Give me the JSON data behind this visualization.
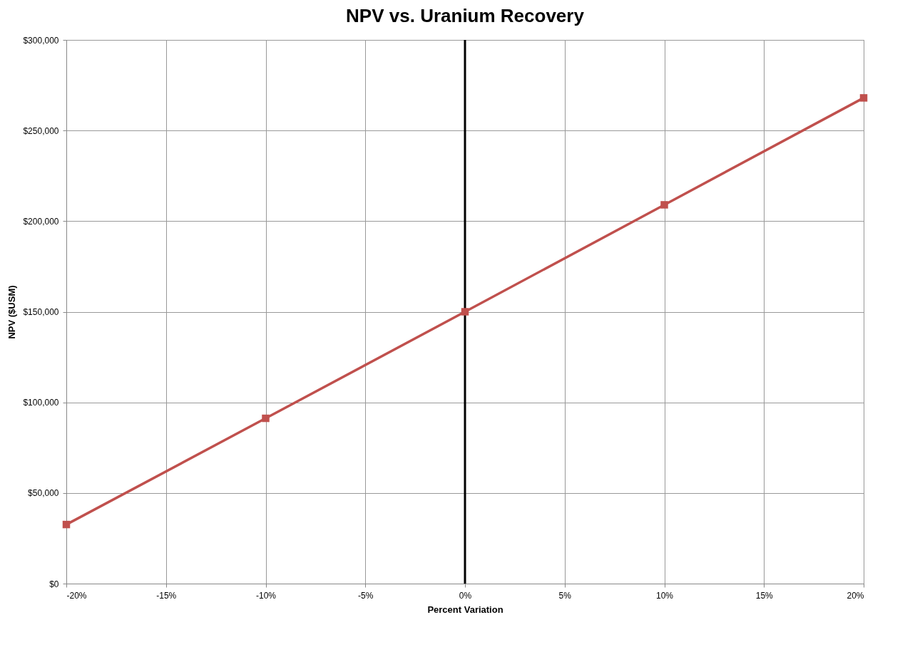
{
  "chart_data": {
    "type": "line",
    "title": "NPV vs. Uranium Recovery",
    "xlabel": "Percent Variation",
    "ylabel": "NPV ($USM)",
    "x": [
      -20,
      -10,
      0,
      10,
      20
    ],
    "series": [
      {
        "color": "#c0504d",
        "values": [
          32600,
          91200,
          150000,
          209000,
          268000
        ]
      }
    ],
    "xlim": [
      -20,
      20
    ],
    "xticks": [
      {
        "value": -20,
        "label": "-20%"
      },
      {
        "value": -15,
        "label": "-15%"
      },
      {
        "value": -10,
        "label": "-10%"
      },
      {
        "value": -5,
        "label": "-5%"
      },
      {
        "value": 0,
        "label": "0%"
      },
      {
        "value": 5,
        "label": "5%"
      },
      {
        "value": 10,
        "label": "10%"
      },
      {
        "value": 15,
        "label": "15%"
      },
      {
        "value": 20,
        "label": "20%"
      }
    ],
    "ylim": [
      0,
      300000
    ],
    "yticks": [
      {
        "value": 0,
        "label": "$0"
      },
      {
        "value": 50000,
        "label": "$50,000"
      },
      {
        "value": 100000,
        "label": "$100,000"
      },
      {
        "value": 150000,
        "label": "$150,000"
      },
      {
        "value": 200000,
        "label": "$200,000"
      },
      {
        "value": 250000,
        "label": "$250,000"
      },
      {
        "value": 300000,
        "label": "$300,000"
      }
    ],
    "ref_lines": [
      {
        "axis": "x",
        "value": 0,
        "color": "#000000"
      }
    ],
    "grid": true,
    "marker": "square",
    "line_style": "solid"
  }
}
